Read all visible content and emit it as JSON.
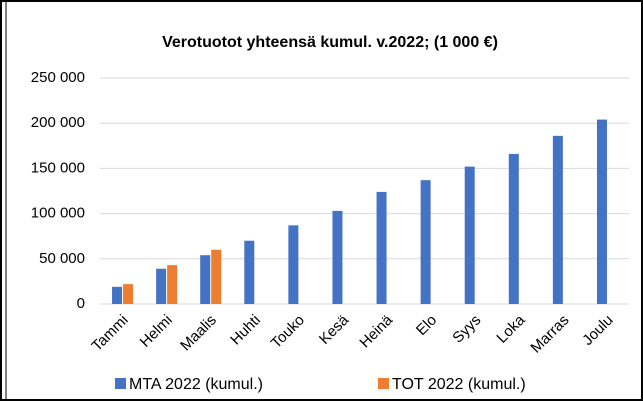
{
  "chart_data": {
    "type": "bar",
    "title": "Verotuotot yhteensä kumul. v.2022; (1 000 €)",
    "categories": [
      "Tammi",
      "Helmi",
      "Maalis",
      "Huhti",
      "Touko",
      "Kesä",
      "Heinä",
      "Elo",
      "Syys",
      "Loka",
      "Marras",
      "Joulu"
    ],
    "series": [
      {
        "name": "MTA 2022 (kumul.)",
        "color": "#4472c4",
        "values": [
          19000,
          39000,
          54000,
          70000,
          87000,
          103000,
          124000,
          137000,
          152000,
          166000,
          186000,
          204000
        ]
      },
      {
        "name": "TOT 2022 (kumul.)",
        "color": "#ed7d31",
        "values": [
          22000,
          43000,
          60000,
          null,
          null,
          null,
          null,
          null,
          null,
          null,
          null,
          null
        ]
      }
    ],
    "ylim": [
      0,
      250000
    ],
    "yticks": [
      {
        "value": 0,
        "label": "0"
      },
      {
        "value": 50000,
        "label": "50 000"
      },
      {
        "value": 100000,
        "label": "100 000"
      },
      {
        "value": 150000,
        "label": "150 000"
      },
      {
        "value": 200000,
        "label": "200 000"
      },
      {
        "value": 250000,
        "label": "250 000"
      }
    ],
    "grid": true,
    "legend": "bottom"
  }
}
